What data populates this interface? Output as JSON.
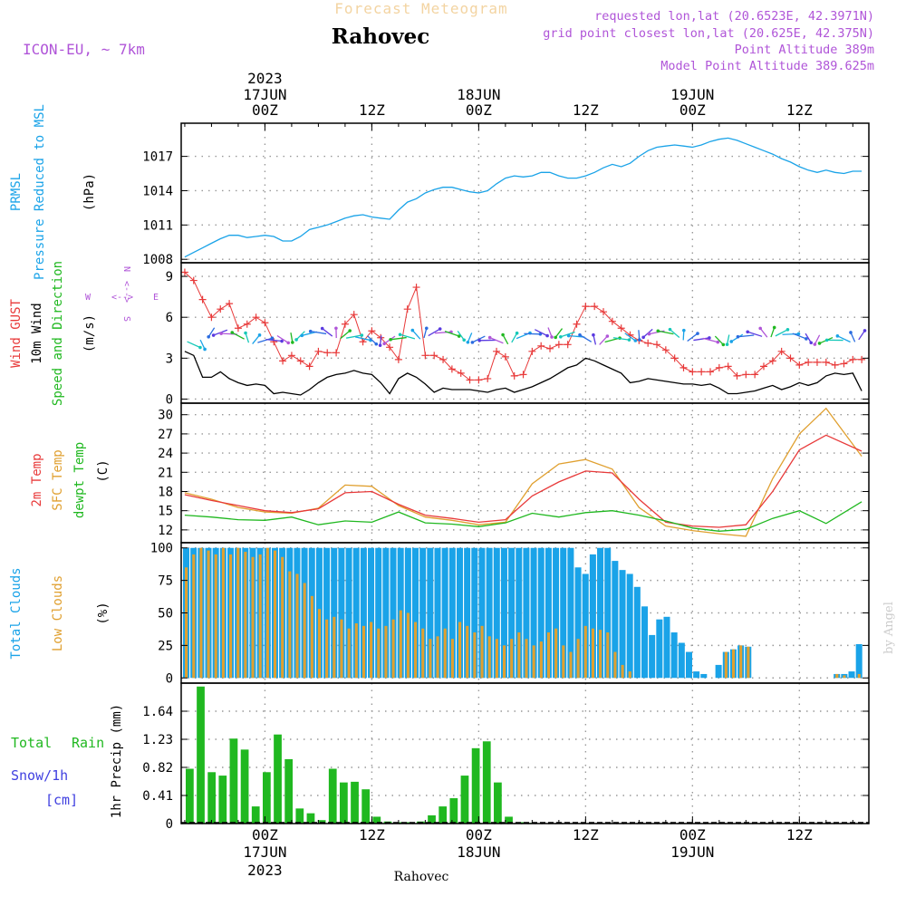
{
  "header": {
    "product": "Forecast Meteogram",
    "location": "Rahovec",
    "model": "ICON-EU, ~ 7km",
    "requested": "requested lon,lat (20.6523E, 42.3971N)",
    "grid": "grid point closest lon,lat (20.625E, 42.375N)",
    "point_alt": "Point Altitude 389m",
    "model_alt": "Model Point Altitude 389.625m",
    "watermark": "by Angel",
    "footer": "Rahovec"
  },
  "colors": {
    "blue": "#1aa3e8",
    "red": "#e83a3a",
    "orange": "#e0a030",
    "green": "#20b820",
    "violet": "#b055d8",
    "black": "#000000"
  },
  "time_axis": {
    "year": "2023",
    "top": [
      {
        "t": 9,
        "l1": "17JUN",
        "l2": "00Z",
        "year": true
      },
      {
        "t": 21,
        "l1": "",
        "l2": "12Z"
      },
      {
        "t": 33,
        "l1": "18JUN",
        "l2": "00Z"
      },
      {
        "t": 45,
        "l1": "",
        "l2": "12Z"
      },
      {
        "t": 57,
        "l1": "19JUN",
        "l2": "00Z"
      },
      {
        "t": 69,
        "l1": "",
        "l2": "12Z"
      }
    ],
    "bottom": [
      {
        "t": 9,
        "l1": "00Z",
        "l2": "17JUN",
        "l3": "2023"
      },
      {
        "t": 21,
        "l1": "12Z"
      },
      {
        "t": 33,
        "l1": "00Z",
        "l2": "18JUN"
      },
      {
        "t": 45,
        "l1": "12Z"
      },
      {
        "t": 57,
        "l1": "00Z",
        "l2": "19JUN"
      },
      {
        "t": 69,
        "l1": "12Z"
      }
    ]
  },
  "chart_data": [
    {
      "type": "line",
      "name": "pressure",
      "labels": {
        "a": "PRMSL",
        "b": "Pressure Reduced to MSL",
        "unit": "(hPa)"
      },
      "ylim": [
        1007.7,
        1019.9
      ],
      "yticks": [
        1008,
        1011,
        1014,
        1017
      ],
      "series": [
        {
          "name": "PRMSL",
          "x": [
            0,
            1,
            2,
            3,
            4,
            5,
            6,
            7,
            8,
            9,
            10,
            11,
            12,
            13,
            14,
            15,
            16,
            17,
            18,
            19,
            20,
            21,
            22,
            23,
            24,
            25,
            26,
            27,
            28,
            29,
            30,
            31,
            32,
            33,
            34,
            35,
            36,
            37,
            38,
            39,
            40,
            41,
            42,
            43,
            44,
            45,
            46,
            47,
            48,
            49,
            50,
            51,
            52,
            53,
            54,
            55,
            56,
            57,
            58,
            59,
            60,
            61,
            62,
            63,
            64,
            65,
            66,
            67,
            68,
            69,
            70,
            71,
            72,
            73,
            74,
            75,
            76
          ],
          "values": [
            1008.2,
            1008.6,
            1009.0,
            1009.4,
            1009.8,
            1010.1,
            1010.1,
            1009.9,
            1010.0,
            1010.1,
            1010.0,
            1009.6,
            1009.6,
            1010.0,
            1010.6,
            1010.8,
            1011.0,
            1011.3,
            1011.6,
            1011.8,
            1011.9,
            1011.7,
            1011.6,
            1011.5,
            1012.3,
            1013.0,
            1013.3,
            1013.8,
            1014.1,
            1014.3,
            1014.3,
            1014.1,
            1013.9,
            1013.8,
            1014.0,
            1014.6,
            1015.1,
            1015.3,
            1015.2,
            1015.3,
            1015.6,
            1015.6,
            1015.3,
            1015.1,
            1015.1,
            1015.3,
            1015.6,
            1016.0,
            1016.3,
            1016.1,
            1016.4,
            1017.0,
            1017.5,
            1017.8,
            1017.9,
            1018.0,
            1017.9,
            1017.8,
            1018.0,
            1018.3,
            1018.5,
            1018.6,
            1018.4,
            1018.1,
            1017.8,
            1017.5,
            1017.2,
            1016.8,
            1016.5,
            1016.1,
            1015.8,
            1015.6,
            1015.8,
            1015.6,
            1015.5,
            1015.7,
            1015.7
          ]
        }
      ]
    },
    {
      "type": "line",
      "name": "wind",
      "labels": {
        "gust": "Wind GUST",
        "wind": "10m Wind",
        "dir": "Speed and Direction",
        "unit": "(m/s)",
        "compass_w": "W",
        "compass_e": "E",
        "compass_n": "N",
        "compass_s": "S"
      },
      "ylim": [
        -0.3,
        10
      ],
      "yticks": [
        0,
        3,
        6,
        9
      ],
      "series": [
        {
          "name": "Wind GUST",
          "x": [
            0,
            1,
            2,
            3,
            4,
            5,
            6,
            7,
            8,
            9,
            10,
            11,
            12,
            13,
            14,
            15,
            16,
            17,
            18,
            19,
            20,
            21,
            22,
            23,
            24,
            25,
            26,
            27,
            28,
            29,
            30,
            31,
            32,
            33,
            34,
            35,
            36,
            37,
            38,
            39,
            40,
            41,
            42,
            43,
            44,
            45,
            46,
            47,
            48,
            49,
            50,
            51,
            52,
            53,
            54,
            55,
            56,
            57,
            58,
            59,
            60,
            61,
            62,
            63,
            64,
            65,
            66,
            67,
            68,
            69,
            70,
            71,
            72,
            73,
            74,
            75,
            76
          ],
          "values": [
            9.3,
            8.7,
            7.3,
            6.0,
            6.6,
            7.0,
            5.2,
            5.5,
            6.0,
            5.6,
            4.2,
            2.8,
            3.2,
            2.8,
            2.4,
            3.5,
            3.4,
            3.4,
            5.5,
            6.2,
            4.2,
            5.0,
            4.5,
            3.8,
            2.9,
            6.6,
            8.2,
            3.2,
            3.2,
            2.9,
            2.2,
            1.9,
            1.4,
            1.4,
            1.5,
            3.5,
            3.1,
            1.7,
            1.8,
            3.5,
            3.9,
            3.7,
            4.0,
            4.0,
            5.5,
            6.8,
            6.8,
            6.4,
            5.7,
            5.2,
            4.7,
            4.3,
            4.1,
            4.0,
            3.6,
            3.0,
            2.3,
            2.0,
            2.0,
            2.0,
            2.3,
            2.4,
            1.7,
            1.8,
            1.8,
            2.4,
            2.8,
            3.5,
            3.0,
            2.5,
            2.7,
            2.7,
            2.7,
            2.5,
            2.6,
            2.9,
            2.9
          ]
        },
        {
          "name": "10m Wind",
          "x": [
            0,
            1,
            2,
            3,
            4,
            5,
            6,
            7,
            8,
            9,
            10,
            11,
            12,
            13,
            14,
            15,
            16,
            17,
            18,
            19,
            20,
            21,
            22,
            23,
            24,
            25,
            26,
            27,
            28,
            29,
            30,
            31,
            32,
            33,
            34,
            35,
            36,
            37,
            38,
            39,
            40,
            41,
            42,
            43,
            44,
            45,
            46,
            47,
            48,
            49,
            50,
            51,
            52,
            53,
            54,
            55,
            56,
            57,
            58,
            59,
            60,
            61,
            62,
            63,
            64,
            65,
            66,
            67,
            68,
            69,
            70,
            71,
            72,
            73,
            74,
            75,
            76
          ],
          "values": [
            3.5,
            3.2,
            1.6,
            1.6,
            2.0,
            1.5,
            1.2,
            1.0,
            1.1,
            1.0,
            0.4,
            0.5,
            0.4,
            0.3,
            0.7,
            1.2,
            1.6,
            1.8,
            1.9,
            2.1,
            1.9,
            1.8,
            1.2,
            0.4,
            1.5,
            1.9,
            1.6,
            1.1,
            0.5,
            0.8,
            0.7,
            0.7,
            0.7,
            0.6,
            0.5,
            0.7,
            0.8,
            0.5,
            0.7,
            0.9,
            1.2,
            1.5,
            1.9,
            2.3,
            2.5,
            3.0,
            2.8,
            2.5,
            2.2,
            1.9,
            1.2,
            1.3,
            1.5,
            1.4,
            1.3,
            1.2,
            1.1,
            1.1,
            1.0,
            1.1,
            0.8,
            0.4,
            0.4,
            0.5,
            0.6,
            0.8,
            1.0,
            0.7,
            0.9,
            1.2,
            1.0,
            1.2,
            1.7,
            1.9,
            1.8,
            1.9,
            0.6
          ]
        }
      ]
    },
    {
      "type": "line",
      "name": "temperature",
      "labels": {
        "t2m": "2m Temp",
        "sfc": "SFC Temp",
        "dew": "dewpt Temp",
        "unit": "(C)"
      },
      "ylim": [
        10,
        31.8
      ],
      "yticks": [
        12,
        15,
        18,
        21,
        24,
        27,
        30
      ],
      "series": [
        {
          "name": "2m Temp",
          "x": [
            0,
            3,
            6,
            9,
            12,
            15,
            18,
            21,
            24,
            27,
            30,
            33,
            36,
            39,
            42,
            45,
            48,
            51,
            54,
            57,
            60,
            63,
            66,
            69,
            72,
            76
          ],
          "values": [
            17.5,
            16.6,
            15.8,
            15.0,
            14.7,
            15.3,
            17.8,
            18.0,
            16.0,
            14.3,
            13.8,
            13.2,
            13.6,
            17.3,
            19.5,
            21.2,
            20.9,
            16.8,
            13.2,
            12.6,
            12.4,
            12.8,
            18.0,
            24.5,
            26.8,
            24.3
          ]
        },
        {
          "name": "SFC Temp",
          "x": [
            0,
            3,
            6,
            9,
            12,
            15,
            18,
            21,
            24,
            27,
            30,
            33,
            36,
            39,
            42,
            45,
            48,
            51,
            54,
            57,
            60,
            63,
            66,
            69,
            72,
            76
          ],
          "values": [
            17.8,
            16.8,
            15.5,
            14.8,
            14.6,
            15.4,
            19.0,
            18.8,
            15.8,
            14.0,
            13.5,
            12.8,
            13.2,
            19.2,
            22.3,
            23.0,
            21.5,
            15.5,
            12.6,
            11.9,
            11.4,
            11.0,
            20.0,
            27.0,
            31.0,
            23.5
          ]
        },
        {
          "name": "dewpt Temp",
          "x": [
            0,
            3,
            6,
            9,
            12,
            15,
            18,
            21,
            24,
            27,
            30,
            33,
            36,
            39,
            42,
            45,
            48,
            51,
            54,
            57,
            60,
            63,
            66,
            69,
            72,
            76
          ],
          "values": [
            14.3,
            14.0,
            13.6,
            13.5,
            14.0,
            12.8,
            13.4,
            13.2,
            14.8,
            13.1,
            12.9,
            12.5,
            13.1,
            14.6,
            14.0,
            14.7,
            15.0,
            14.3,
            13.4,
            12.3,
            11.8,
            12.1,
            13.8,
            15.0,
            13.0,
            16.4
          ]
        }
      ]
    },
    {
      "type": "bar",
      "name": "clouds",
      "labels": {
        "total": "Total Clouds",
        "low": "Low Clouds",
        "unit": "(%)"
      },
      "ylim": [
        -4,
        104
      ],
      "yticks": [
        0,
        25,
        50,
        75,
        100
      ],
      "series": [
        {
          "name": "Total Clouds",
          "values": [
            100,
            100,
            100,
            100,
            100,
            100,
            100,
            100,
            100,
            100,
            100,
            100,
            100,
            100,
            100,
            100,
            100,
            100,
            100,
            100,
            100,
            100,
            100,
            100,
            100,
            100,
            100,
            100,
            100,
            100,
            100,
            100,
            100,
            100,
            100,
            100,
            100,
            100,
            100,
            100,
            100,
            100,
            100,
            100,
            100,
            100,
            100,
            100,
            100,
            100,
            100,
            100,
            100,
            85,
            80,
            95,
            100,
            100,
            90,
            83,
            80,
            70,
            55,
            33,
            45,
            47,
            35,
            27,
            20,
            5,
            3,
            0,
            10,
            20,
            22,
            25,
            24,
            0,
            0,
            0,
            0,
            0,
            0,
            0,
            0,
            0,
            0,
            0,
            3,
            3,
            5,
            26,
            0
          ]
        },
        {
          "name": "Low Clouds",
          "values": [
            85,
            95,
            100,
            98,
            95,
            100,
            95,
            100,
            97,
            93,
            95,
            100,
            98,
            93,
            82,
            80,
            73,
            63,
            53,
            45,
            47,
            45,
            38,
            42,
            40,
            43,
            38,
            40,
            45,
            52,
            50,
            43,
            38,
            30,
            32,
            38,
            30,
            43,
            40,
            35,
            40,
            32,
            30,
            25,
            30,
            35,
            30,
            25,
            28,
            35,
            38,
            25,
            20,
            30,
            40,
            38,
            37,
            35,
            20,
            10,
            5,
            0,
            0,
            0,
            0,
            0,
            0,
            0,
            0,
            0,
            0,
            0,
            0,
            20,
            22,
            25,
            24,
            0,
            0,
            0,
            0,
            0,
            0,
            0,
            0,
            0,
            0,
            0,
            3,
            2,
            0,
            3,
            0
          ]
        }
      ]
    },
    {
      "type": "bar",
      "name": "precipitation",
      "labels": {
        "total": "Total",
        "rain": "Rain",
        "snow": "Snow/1h",
        "cm": "[cm]",
        "unit": "1hr Precip (mm)"
      },
      "ylim": [
        0,
        2.05
      ],
      "yticks": [
        0,
        0.41,
        0.82,
        1.23,
        1.64
      ],
      "series": [
        {
          "name": "Total Rain",
          "values": [
            0.8,
            2.0,
            0.75,
            0.7,
            1.24,
            1.08,
            0.25,
            0.75,
            1.3,
            0.94,
            0.22,
            0.15,
            0.05,
            0.8,
            0.6,
            0.61,
            0.5,
            0.1,
            0.03,
            0.02,
            0.02,
            0.03,
            0.12,
            0.25,
            0.37,
            0.7,
            1.1,
            1.2,
            0.6,
            0.1,
            0.02,
            0.01,
            0.0,
            0.0,
            0.0,
            0.0,
            0.0,
            0.0,
            0.0,
            0.0,
            0.0,
            0.0,
            0.0,
            0.0,
            0.0,
            0.0,
            0.0,
            0.0,
            0.0,
            0.0,
            0.0,
            0.0,
            0.0,
            0.0,
            0.0,
            0.0,
            0.0,
            0.0,
            0.0,
            0.0,
            0.0,
            0.0,
            0.0
          ]
        }
      ]
    }
  ]
}
